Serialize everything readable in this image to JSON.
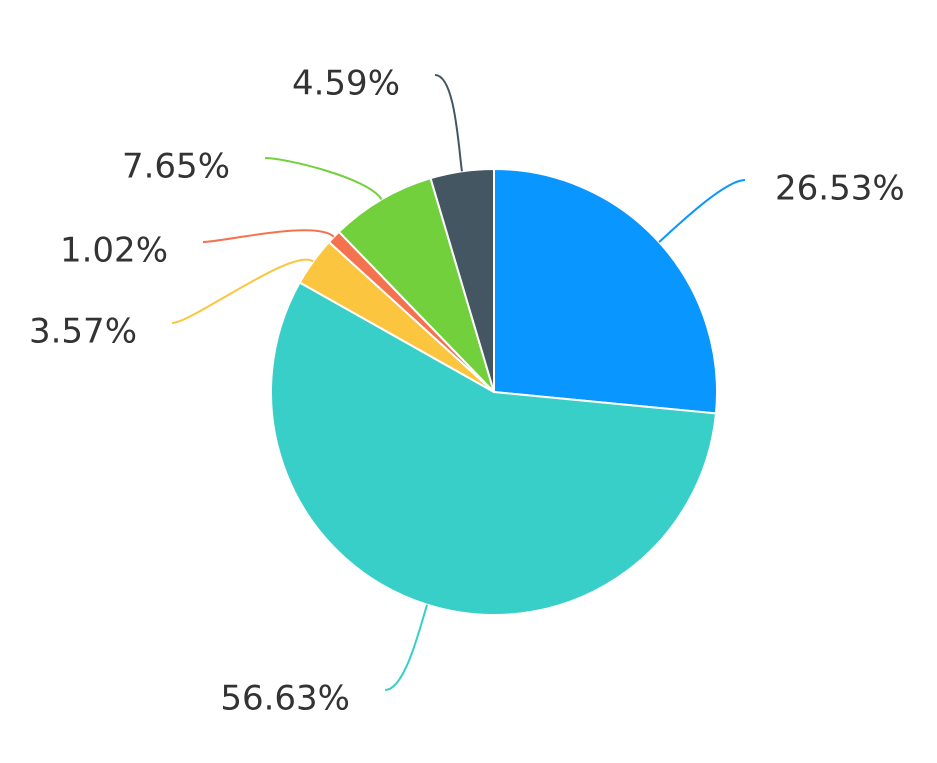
{
  "chart_data": {
    "type": "pie",
    "values": [
      26.53,
      56.63,
      3.57,
      1.02,
      7.65,
      4.59
    ],
    "value_labels": [
      "26.53%",
      "56.63%",
      "3.57%",
      "1.02%",
      "7.65%",
      "4.59%"
    ],
    "colors": [
      "#0a96ff",
      "#38cfc9",
      "#fcc53f",
      "#f4724d",
      "#73d03d",
      "#435661"
    ]
  }
}
